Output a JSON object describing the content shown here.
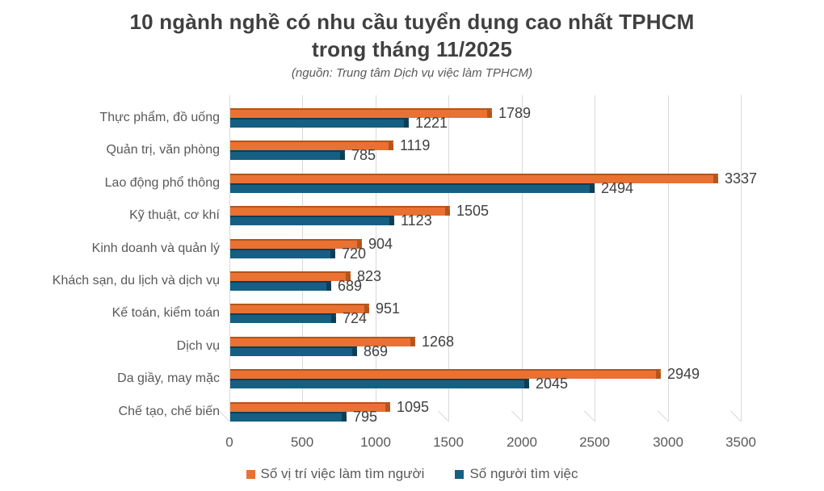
{
  "chart_data": {
    "type": "bar",
    "orientation": "horizontal",
    "title_line1": "10 ngành nghề có nhu cầu tuyển dụng cao nhất TPHCM",
    "title_line2": "trong tháng 11/2025",
    "subtitle": "(nguồn: Trung tâm Dịch vụ việc làm TPHCM)",
    "categories": [
      "Thực phẩm, đồ uống",
      "Quản trị, văn phòng",
      "Lao động phổ thông",
      "Kỹ thuật, cơ khí",
      "Kinh doanh và quản lý",
      "Khách sạn, du lịch và dịch vụ",
      "Kế toán, kiểm toán",
      "Dịch vụ",
      "Da giầy, may mặc",
      "Chế tạo, chế biến"
    ],
    "series": [
      {
        "name": "Số vị trí việc làm tìm người",
        "color": "#E97132",
        "color_dark": "#B4551C",
        "values": [
          1789,
          1119,
          3337,
          1505,
          904,
          823,
          951,
          1268,
          2949,
          1095
        ]
      },
      {
        "name": "Số người tìm việc",
        "color": "#156082",
        "color_dark": "#0D3E55",
        "values": [
          1221,
          785,
          2494,
          1123,
          720,
          689,
          724,
          869,
          2045,
          795
        ]
      }
    ],
    "x_ticks": [
      0,
      500,
      1000,
      1500,
      2000,
      2500,
      3000,
      3500
    ],
    "xlim": [
      0,
      3500
    ],
    "grid": true,
    "legend_position": "bottom",
    "colors": {
      "gridline": "#D9D9D9",
      "title_text": "#404040",
      "axis_text": "#595959",
      "value_text": "#404040",
      "background": "#FFFFFF"
    }
  }
}
